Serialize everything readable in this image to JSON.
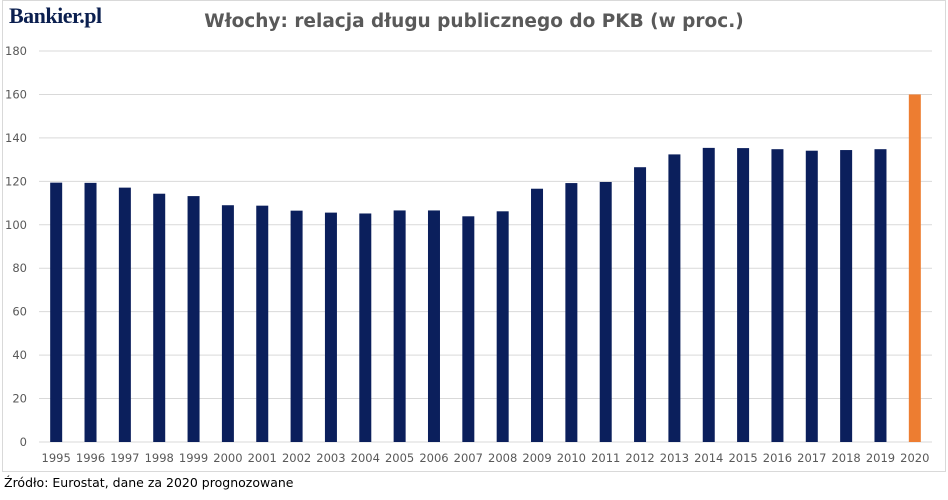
{
  "logo_text": "Bankier.pl",
  "source_note": "Źródło: Eurostat, dane za 2020 prognozowane",
  "colors": {
    "bar": "#0b1f5c",
    "highlight_bar": "#ed7d31",
    "grid": "#d9d9d9",
    "text": "#595959"
  },
  "chart_data": {
    "type": "bar",
    "title": "Włochy: relacja długu publicznego do PKB (w proc.)",
    "xlabel": "",
    "ylabel": "",
    "ylim": [
      0,
      180
    ],
    "yticks": [
      0,
      20,
      40,
      60,
      80,
      100,
      120,
      140,
      160,
      180
    ],
    "grid": true,
    "legend": "none",
    "categories": [
      "1995",
      "1996",
      "1997",
      "1998",
      "1999",
      "2000",
      "2001",
      "2002",
      "2003",
      "2004",
      "2005",
      "2006",
      "2007",
      "2008",
      "2009",
      "2010",
      "2011",
      "2012",
      "2013",
      "2014",
      "2015",
      "2016",
      "2017",
      "2018",
      "2019",
      "2020"
    ],
    "values": [
      119.4,
      119.3,
      117.1,
      114.3,
      113.2,
      109.0,
      108.8,
      106.5,
      105.6,
      105.2,
      106.6,
      106.6,
      103.9,
      106.2,
      116.6,
      119.2,
      119.7,
      126.5,
      132.4,
      135.4,
      135.3,
      134.8,
      134.1,
      134.4,
      134.8,
      160.0
    ],
    "highlight": [
      "2020"
    ]
  }
}
